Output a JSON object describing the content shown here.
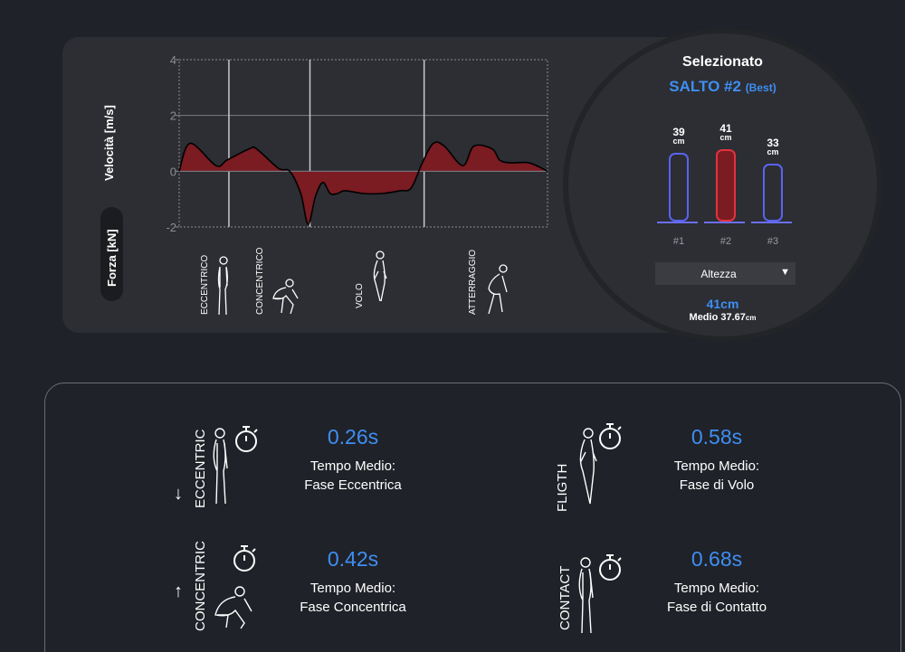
{
  "chart_data": {
    "type": "area",
    "ylabel": "Velocità [m/s]",
    "ylim": [
      -2,
      4
    ],
    "yticks": [
      4,
      2,
      0,
      -2
    ],
    "grid": true,
    "fill_color": "#7b1b22",
    "x": [
      0,
      0.03,
      0.1,
      0.13,
      0.19,
      0.21,
      0.27,
      0.3,
      0.33,
      0.35,
      0.37,
      0.39,
      0.41,
      0.43,
      0.45,
      0.5,
      0.55,
      0.6,
      0.63,
      0.66,
      0.69,
      0.72,
      0.77,
      0.8,
      0.85,
      0.87,
      0.9,
      0.95,
      1.0
    ],
    "y": [
      0,
      1.0,
      0.2,
      0.4,
      0.8,
      0.8,
      0.1,
      0.0,
      -0.8,
      -1.9,
      -0.9,
      -0.4,
      -0.8,
      -0.8,
      -0.7,
      -0.8,
      -0.8,
      -0.7,
      -0.6,
      0.3,
      1.0,
      0.9,
      0.2,
      0.9,
      0.8,
      0.4,
      0.3,
      0.3,
      0.0
    ],
    "phases": [
      "ECCENTRICO",
      "CONCENTRICO",
      "VOLO",
      "ATTERRAGGIO"
    ]
  },
  "force_toggle": "Forza [kN]",
  "selected": {
    "title": "Selezionato",
    "jump": "SALTO #2",
    "best": "(Best)",
    "bars": [
      {
        "label": "#1",
        "value": 39,
        "unit": "cm",
        "color": "#5a63f0",
        "fill": "#2c2e33"
      },
      {
        "label": "#2",
        "value": 41,
        "unit": "cm",
        "color": "#e0333f",
        "fill": "#7b1b22"
      },
      {
        "label": "#3",
        "value": 33,
        "unit": "cm",
        "color": "#5a63f0",
        "fill": "#2c2e33"
      }
    ],
    "dropdown": "Altezza",
    "metric": "41cm",
    "average_label": "Medio 37.67",
    "average_unit": "cm"
  },
  "stats": [
    {
      "vertical": "ECCENTRIC",
      "value": "0.26s",
      "line1": "Tempo Medio:",
      "line2": "Fase Eccentrica",
      "arrow": "↓"
    },
    {
      "vertical": "FLIGTH",
      "value": "0.58s",
      "line1": "Tempo Medio:",
      "line2": "Fase di Volo",
      "arrow": ""
    },
    {
      "vertical": "CONCENTRIC",
      "value": "0.42s",
      "line1": "Tempo Medio:",
      "line2": "Fase Concentrica",
      "arrow": "↑"
    },
    {
      "vertical": "CONTACT",
      "value": "0.68s",
      "line1": "Tempo Medio:",
      "line2": "Fase di Contatto",
      "arrow": ""
    }
  ]
}
